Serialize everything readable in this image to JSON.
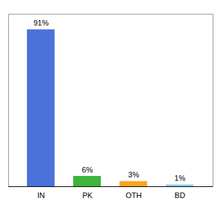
{
  "chart_data": {
    "type": "bar",
    "categories": [
      "IN",
      "PK",
      "OTH",
      "BD"
    ],
    "values": [
      91,
      6,
      3,
      1
    ],
    "value_labels": [
      "91%",
      "6%",
      "3%",
      "1%"
    ],
    "colors": [
      "#4a72d9",
      "#3db53d",
      "#f5a623",
      "#7ecef4"
    ],
    "ylim": [
      0,
      100
    ],
    "data_labels": true,
    "tick_labels": "x"
  }
}
